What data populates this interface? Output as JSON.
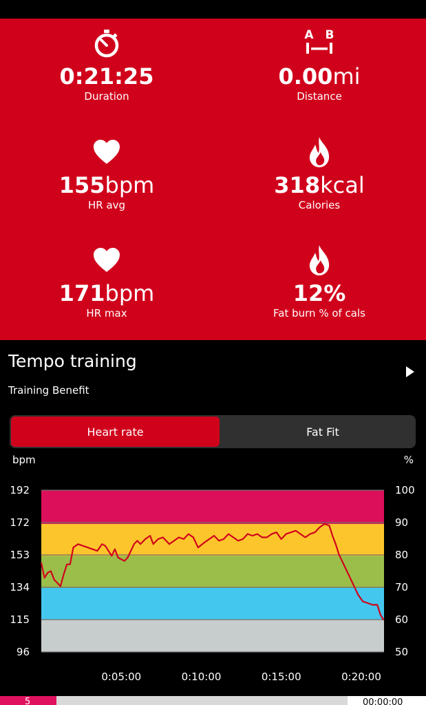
{
  "colors": {
    "accent": "#d0021b",
    "zone_5": "#dc0f5a",
    "zone_4": "#fdc52c",
    "zone_3": "#9bbe4a",
    "zone_2": "#44c7ee",
    "zone_1": "#c7cccc",
    "hr_line": "#d0021b"
  },
  "stats": {
    "duration": {
      "icon": "stopwatch-icon",
      "value": "0:21:25",
      "unit": "",
      "label": "Duration"
    },
    "distance": {
      "icon": "a-b-distance-icon",
      "value": "0.00",
      "unit": "mi",
      "label": "Distance"
    },
    "hr_avg": {
      "icon": "heart-icon",
      "value": "155",
      "unit": "bpm",
      "label": "HR avg"
    },
    "calories": {
      "icon": "flame-icon",
      "value": "318",
      "unit": "kcal",
      "label": "Calories"
    },
    "hr_max": {
      "icon": "heart-icon",
      "value": "171",
      "unit": "bpm",
      "label": "HR max"
    },
    "fat_burn": {
      "icon": "flame-icon",
      "value": "12",
      "unit": "%",
      "label": "Fat burn % of cals"
    }
  },
  "training": {
    "title": "Tempo training",
    "subtitle": "Training Benefit",
    "play_icon": "play-icon"
  },
  "toggle": {
    "heart_rate_label": "Heart rate",
    "fat_fit_label": "Fat Fit",
    "selected": "Heart rate"
  },
  "chart_data": {
    "type": "line",
    "ylabel": "bpm",
    "y2label": "%",
    "ylim": [
      96,
      192
    ],
    "y_ticks": [
      "192",
      "172",
      "153",
      "134",
      "115",
      "96"
    ],
    "y2lim": [
      50,
      100
    ],
    "y2_ticks": [
      "100",
      "90",
      "80",
      "70",
      "60",
      "50"
    ],
    "xlim_min": [
      0,
      21.42
    ],
    "x_ticks": [
      "0:05:00",
      "0:10:00",
      "0:15:00",
      "0:20:00"
    ],
    "x_tick_minutes": [
      5,
      10,
      15,
      20
    ],
    "zones": [
      {
        "from": 172,
        "to": 192,
        "color": "#dc0f5a"
      },
      {
        "from": 153,
        "to": 172,
        "color": "#fdc52c"
      },
      {
        "from": 134,
        "to": 153,
        "color": "#9bbe4a"
      },
      {
        "from": 115,
        "to": 134,
        "color": "#44c7ee"
      },
      {
        "from": 96,
        "to": 115,
        "color": "#c7cccc"
      }
    ],
    "series": [
      {
        "x": [
          0,
          0.2,
          0.4,
          0.6,
          0.8,
          1.0,
          1.2,
          1.4,
          1.6,
          1.8,
          2.0,
          2.3,
          2.6,
          2.9,
          3.2,
          3.5,
          3.8,
          4.0,
          4.2,
          4.4,
          4.6,
          4.8,
          5.0,
          5.2,
          5.4,
          5.6,
          5.8,
          6.0,
          6.2,
          6.5,
          6.8,
          7.0,
          7.3,
          7.6,
          7.8,
          8.0,
          8.3,
          8.6,
          8.9,
          9.2,
          9.5,
          9.8,
          10.2,
          10.5,
          10.8,
          11.1,
          11.4,
          11.7,
          12.0,
          12.3,
          12.6,
          12.9,
          13.2,
          13.5,
          13.8,
          14.1,
          14.4,
          14.7,
          15.0,
          15.3,
          15.6,
          15.9,
          16.2,
          16.5,
          16.8,
          17.1,
          17.4,
          17.7,
          18.0,
          18.2,
          18.4,
          18.6,
          18.9,
          19.2,
          19.5,
          19.8,
          20.1,
          20.4,
          20.7,
          21.0,
          21.2,
          21.4
        ],
        "y": [
          149,
          140,
          143,
          144,
          139,
          137,
          135,
          142,
          148,
          148,
          158,
          160,
          159,
          158,
          157,
          156,
          160,
          159,
          156,
          153,
          157,
          152,
          151,
          150,
          152,
          156,
          160,
          162,
          160,
          163,
          165,
          160,
          163,
          164,
          162,
          160,
          162,
          164,
          163,
          166,
          164,
          158,
          161,
          163,
          165,
          162,
          163,
          166,
          164,
          162,
          163,
          166,
          165,
          166,
          164,
          164,
          166,
          167,
          163,
          166,
          167,
          168,
          166,
          164,
          166,
          167,
          170,
          172,
          171,
          165,
          160,
          154,
          148,
          142,
          136,
          130,
          126,
          125,
          124,
          124,
          118,
          115
        ]
      }
    ]
  },
  "bottom_bar": {
    "tab_label": "5",
    "time_label": "00:00:00"
  }
}
